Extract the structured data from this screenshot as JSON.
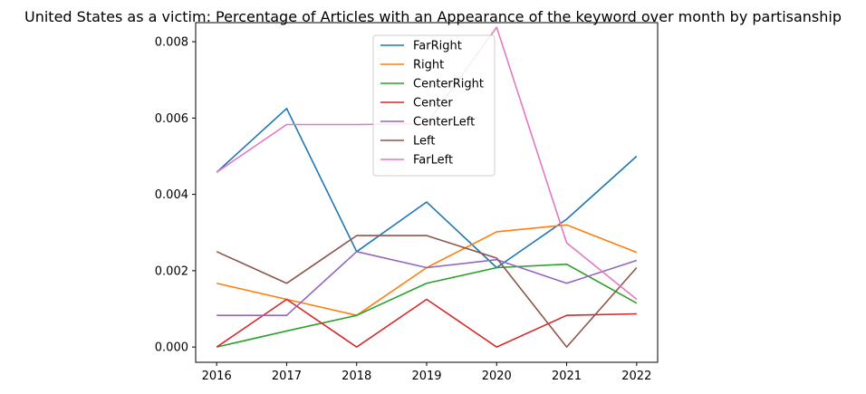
{
  "chart_data": {
    "type": "line",
    "title": "United States as a victim: Percentage of Articles with an Appearance of the keyword over month by partisanship",
    "xlabel": "",
    "ylabel": "",
    "x": [
      2016,
      2017,
      2018,
      2019,
      2020,
      2021,
      2022
    ],
    "x_tick_labels": [
      "2016",
      "2017",
      "2018",
      "2019",
      "2020",
      "2021",
      "2022"
    ],
    "ylim": [
      -0.0004,
      0.0085
    ],
    "y_ticks": [
      0.0,
      0.002,
      0.004,
      0.006,
      0.008
    ],
    "y_tick_labels": [
      "0.000",
      "0.002",
      "0.004",
      "0.006",
      "0.008"
    ],
    "grid": false,
    "legend_position": "upper-center",
    "series": [
      {
        "name": "FarRight",
        "color": "#1f77b4",
        "values": [
          0.00458,
          0.00625,
          0.0025,
          0.0038,
          0.00208,
          0.00335,
          0.005
        ]
      },
      {
        "name": "Right",
        "color": "#ff7f0e",
        "values": [
          0.00167,
          0.00125,
          0.00083,
          0.00208,
          0.00302,
          0.0032,
          0.00248
        ]
      },
      {
        "name": "CenterRight",
        "color": "#2ca02c",
        "values": [
          0.0,
          0.00042,
          0.00083,
          0.00167,
          0.00208,
          0.00217,
          0.00115
        ]
      },
      {
        "name": "Center",
        "color": "#d62728",
        "values": [
          0.0,
          0.00125,
          0.0,
          0.00125,
          0.0,
          0.00083,
          0.00087
        ]
      },
      {
        "name": "CenterLeft",
        "color": "#9467bd",
        "values": [
          0.00083,
          0.00083,
          0.0025,
          0.00208,
          0.00229,
          0.00167,
          0.00227
        ]
      },
      {
        "name": "Left",
        "color": "#8c564b",
        "values": [
          0.0025,
          0.00167,
          0.00292,
          0.00292,
          0.00233,
          0.0,
          0.00208
        ]
      },
      {
        "name": "FarLeft",
        "color": "#e377c2",
        "values": [
          0.00458,
          0.00583,
          0.00583,
          0.00585,
          0.00838,
          0.00273,
          0.00125
        ]
      }
    ]
  }
}
